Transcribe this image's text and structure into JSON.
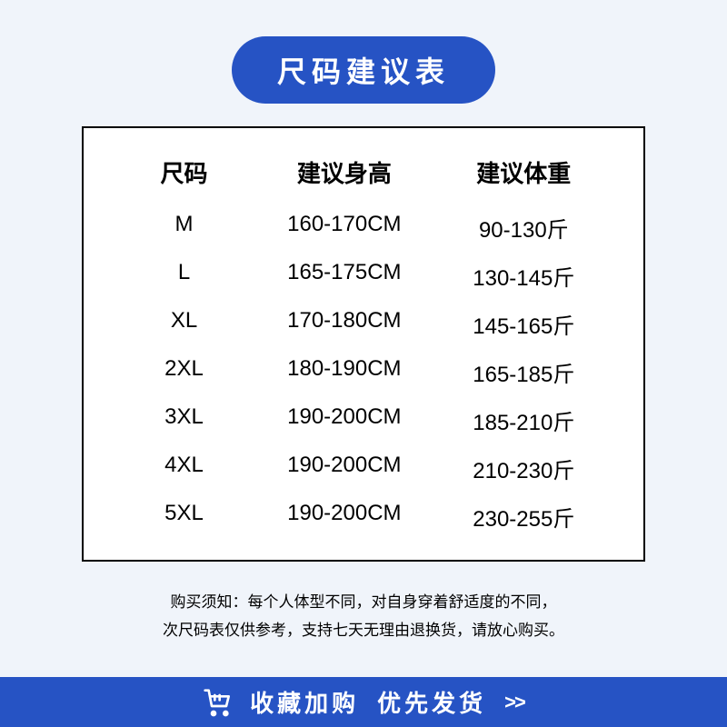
{
  "title": "尺码建议表",
  "table": {
    "type": "table",
    "columns": [
      "尺码",
      "建议身高",
      "建议体重"
    ],
    "rows": [
      [
        "M",
        "160-170CM",
        "90-130斤"
      ],
      [
        "L",
        "165-175CM",
        "130-145斤"
      ],
      [
        "XL",
        "170-180CM",
        "145-165斤"
      ],
      [
        "2XL",
        "180-190CM",
        "165-185斤"
      ],
      [
        "3XL",
        "190-200CM",
        "185-210斤"
      ],
      [
        "4XL",
        "190-200CM",
        "210-230斤"
      ],
      [
        "5XL",
        "190-200CM",
        "230-255斤"
      ]
    ],
    "header_fontsize": 26,
    "cell_fontsize": 24,
    "border_color": "#000000",
    "background_color": "#ffffff"
  },
  "disclaimer": {
    "line1": "购买须知：每个人体型不同，对自身穿着舒适度的不同，",
    "line2": "次尺码表仅供参考，支持七天无理由退换货，请放心购买。"
  },
  "footer": {
    "text1": "收藏加购",
    "text2": "优先发货",
    "arrows": ">>"
  },
  "colors": {
    "primary_blue": "#2653c4",
    "background": "#f0f4fa",
    "text": "#000000",
    "white": "#ffffff"
  }
}
